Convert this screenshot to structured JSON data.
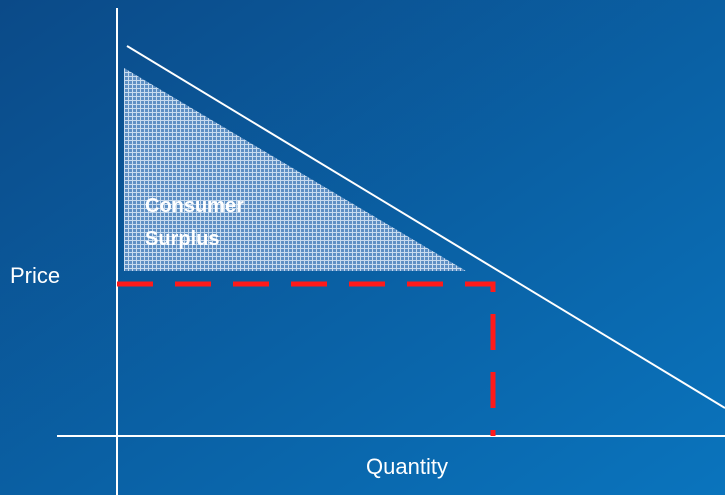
{
  "labels": {
    "y_axis": "Price",
    "x_axis": "Quantity",
    "area": [
      "Consumer",
      "Surplus"
    ]
  }
}
